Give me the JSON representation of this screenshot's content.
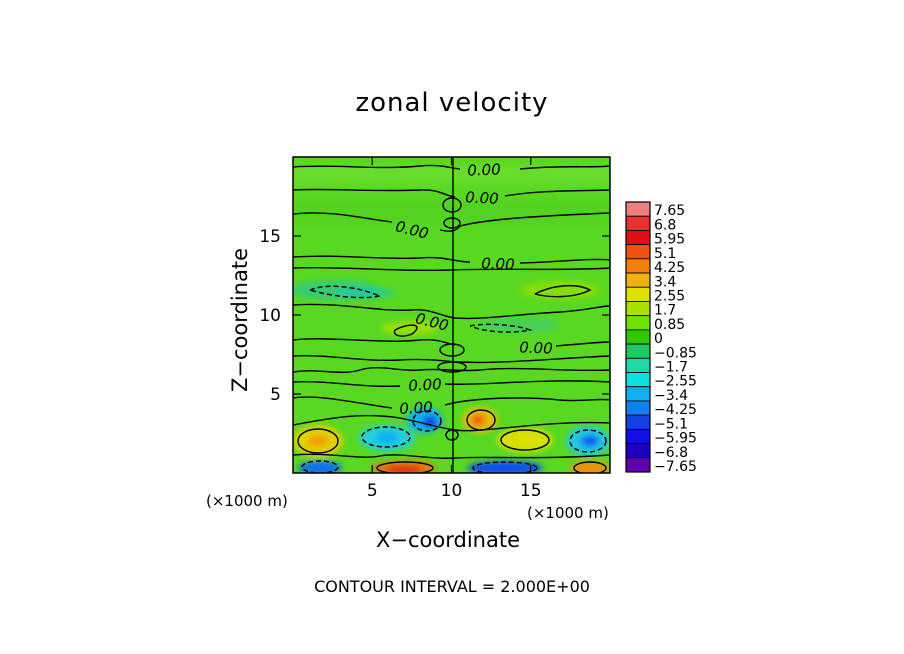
{
  "chart_data": {
    "type": "heatmap",
    "title": "zonal velocity",
    "xlabel": "X−coordinate",
    "ylabel": "Z−coordinate",
    "x_unit": "(×1000 m)",
    "z_unit": "(×1000 m)",
    "xlim": [
      0,
      20
    ],
    "zlim": [
      0,
      20
    ],
    "x_ticks": [
      5,
      10,
      15
    ],
    "z_ticks": [
      5,
      10,
      15
    ],
    "contour_labels": [
      "0.00",
      "0.00",
      "0.00",
      "0.00",
      "0.00",
      "0.00",
      "0.00",
      "0.00"
    ],
    "footer": "CONTOUR INTERVAL = 2.000E+00",
    "colorbar": {
      "levels": [
        "7.65",
        "6.8",
        "5.95",
        "5.1",
        "4.25",
        "3.4",
        "2.55",
        "1.7",
        "0.85",
        "0",
        "−0.85",
        "−1.7",
        "−2.55",
        "−3.4",
        "−4.25",
        "−5.1",
        "−5.95",
        "−6.8",
        "−7.65"
      ],
      "colors": [
        "#f08080",
        "#e83030",
        "#e01010",
        "#f05010",
        "#f08010",
        "#f0b010",
        "#e0e000",
        "#a8e000",
        "#70e000",
        "#30c800",
        "#20c860",
        "#20d8a8",
        "#10e0e0",
        "#10b0f0",
        "#1080f0",
        "#1040e0",
        "#1010e0",
        "#2000c0",
        "#6000b0"
      ]
    }
  }
}
